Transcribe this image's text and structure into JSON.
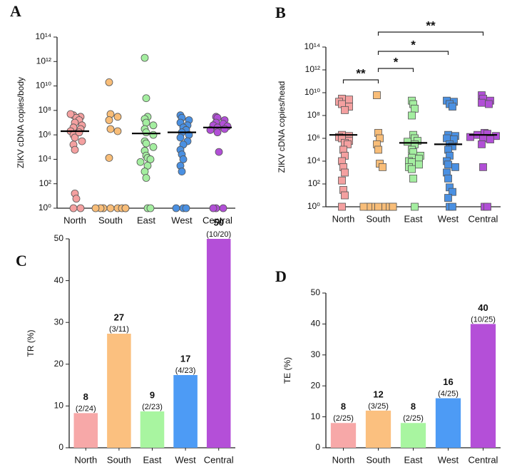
{
  "chart_data": [
    {
      "type": "scatter",
      "panel_label": "A",
      "y_label": "ZIKV cDNA copies/body",
      "log_scale": true,
      "categories": [
        "North",
        "South",
        "East",
        "West",
        "Central"
      ],
      "ylim": [
        1,
        100000000000000.0
      ],
      "yticks": [
        {
          "value": 1,
          "label": "10⁰"
        },
        {
          "value": 100,
          "label": "10²"
        },
        {
          "value": 10000,
          "label": "10⁴"
        },
        {
          "value": 1000000.0,
          "label": "10⁶"
        },
        {
          "value": 100000000.0,
          "label": "10⁸"
        },
        {
          "value": 10000000000.0,
          "label": "10¹⁰"
        },
        {
          "value": 1000000000000.0,
          "label": "10¹²"
        },
        {
          "value": 100000000000000.0,
          "label": "10¹⁴"
        }
      ],
      "marker": "circle",
      "series": [
        {
          "color": "#f4a0a0",
          "values": [
            40000000.0,
            30000000.0,
            25000000.0,
            16000000.0,
            10000000.0,
            6000000.0,
            4000000.0,
            3000000.0,
            2000000.0,
            1000000.0,
            600000.0,
            300000.0,
            160000.0,
            60000.0,
            50000000.0,
            1600000.0,
            16,
            6,
            1,
            1
          ]
        },
        {
          "color": "#f8bd78",
          "values": [
            20000000000.0,
            50000000.0,
            30000000.0,
            16000000.0,
            3000000.0,
            2000000.0,
            13000.0,
            1,
            1,
            1,
            1,
            1,
            1,
            1,
            1
          ]
        },
        {
          "color": "#a4eea0",
          "values": [
            2000000000000.0,
            1000000000.0,
            30000000.0,
            20000000.0,
            10000000.0,
            6000000.0,
            3000000.0,
            1600000.0,
            1000000.0,
            300000.0,
            200000.0,
            100000.0,
            50000.0,
            20000.0,
            13000.0,
            10000.0,
            6000.0,
            3000.0,
            1000.0,
            300,
            1,
            1
          ]
        },
        {
          "color": "#4a90e2",
          "values": [
            40000000.0,
            25000000.0,
            16000000.0,
            10000000.0,
            6000000.0,
            4000000.0,
            2500000.0,
            1600000.0,
            1000000.0,
            600000.0,
            300000.0,
            160000.0,
            60000.0,
            25000.0,
            10000.0,
            3000.0,
            1000.0,
            1,
            1,
            1
          ]
        },
        {
          "color": "#b14fd6",
          "values": [
            30000000.0,
            25000000.0,
            16000000.0,
            10000000.0,
            8000000.0,
            6000000.0,
            5000000.0,
            4000000.0,
            3000000.0,
            2500000.0,
            1600000.0,
            40000.0,
            1,
            1,
            1
          ]
        }
      ],
      "medians": [
        2000000.0,
        null,
        1300000.0,
        1600000.0,
        4000000.0
      ]
    },
    {
      "type": "scatter",
      "panel_label": "B",
      "y_label": "ZIKV cDNA copies/head",
      "log_scale": true,
      "categories": [
        "North",
        "South",
        "East",
        "West",
        "Central"
      ],
      "ylim": [
        1,
        100000000000000.0
      ],
      "yticks": [
        {
          "value": 1,
          "label": "10⁰"
        },
        {
          "value": 100,
          "label": "10²"
        },
        {
          "value": 10000,
          "label": "10⁴"
        },
        {
          "value": 1000000.0,
          "label": "10⁶"
        },
        {
          "value": 100000000.0,
          "label": "10⁸"
        },
        {
          "value": 10000000000.0,
          "label": "10¹⁰"
        },
        {
          "value": 1000000000000.0,
          "label": "10¹²"
        },
        {
          "value": 100000000000000.0,
          "label": "10¹⁴"
        }
      ],
      "marker": "square",
      "series": [
        {
          "color": "#f4a0a0",
          "values": [
            3000000000.0,
            2500000000.0,
            1600000000.0,
            1000000000.0,
            600000000.0,
            300000000.0,
            2000000.0,
            1600000.0,
            1300000.0,
            1000000.0,
            600000.0,
            400000.0,
            300000.0,
            100000.0,
            30000.0,
            10000.0,
            3000.0,
            1000.0,
            200,
            30,
            10,
            1
          ]
        },
        {
          "color": "#f8bd78",
          "values": [
            6000000000.0,
            3000000.0,
            1000000.0,
            300000.0,
            100000.0,
            6000.0,
            3000.0,
            1,
            1,
            1,
            1,
            1,
            1,
            1,
            1
          ]
        },
        {
          "color": "#a4eea0",
          "values": [
            2000000000.0,
            1000000000.0,
            400000000.0,
            100000000.0,
            2000000.0,
            1000000.0,
            600000.0,
            500000.0,
            300000.0,
            100000.0,
            60000.0,
            30000.0,
            20000.0,
            16000.0,
            10000.0,
            8000.0,
            5000.0,
            3000.0,
            2000.0,
            300,
            1
          ]
        },
        {
          "color": "#4a90e2",
          "values": [
            2000000000.0,
            1600000000.0,
            1000000000.0,
            600000000.0,
            2000000.0,
            1600000.0,
            1000000.0,
            800000.0,
            300000.0,
            200000.0,
            100000.0,
            30000.0,
            10000.0,
            5000.0,
            3000.0,
            1000.0,
            300,
            50,
            20,
            6,
            1,
            1
          ]
        },
        {
          "color": "#b14fd6",
          "values": [
            6000000000.0,
            3000000000.0,
            2000000000.0,
            1300000000.0,
            1000000000.0,
            3000000.0,
            2500000.0,
            2000000.0,
            1600000.0,
            1300000.0,
            1000000.0,
            800000.0,
            300000.0,
            3000.0,
            1,
            1
          ]
        }
      ],
      "medians": [
        2000000.0,
        null,
        400000.0,
        300000.0,
        2000000.0
      ],
      "significance": [
        {
          "from": "North",
          "to": "South",
          "label": "**"
        },
        {
          "from": "South",
          "to": "East",
          "label": "*"
        },
        {
          "from": "South",
          "to": "West",
          "label": "*"
        },
        {
          "from": "South",
          "to": "Central",
          "label": "**"
        }
      ]
    },
    {
      "type": "bar",
      "panel_label": "C",
      "y_label": "TR  (%)",
      "categories": [
        "North",
        "South",
        "East",
        "West",
        "Central"
      ],
      "values": [
        8.3,
        27.3,
        8.7,
        17.4,
        50
      ],
      "value_labels": [
        "8",
        "27",
        "9",
        "17",
        "50"
      ],
      "fraction_labels": [
        "(2/24)",
        "(3/11)",
        "(2/23)",
        "(4/23)",
        "(10/20)"
      ],
      "colors": [
        "#f7a8a8",
        "#fbc07f",
        "#a8f5a0",
        "#4d9bf5",
        "#b44fd8"
      ],
      "ylim": [
        0,
        50
      ],
      "yticks": [
        0,
        10,
        20,
        30,
        40,
        50
      ]
    },
    {
      "type": "bar",
      "panel_label": "D",
      "y_label": "TE (%)",
      "categories": [
        "North",
        "South",
        "East",
        "West",
        "Central"
      ],
      "values": [
        8,
        12,
        8,
        16,
        40
      ],
      "value_labels": [
        "8",
        "12",
        "8",
        "16",
        "40"
      ],
      "fraction_labels": [
        "(2/25)",
        "(3/25)",
        "(2/25)",
        "(4/25)",
        "(10/25)"
      ],
      "colors": [
        "#f7a8a8",
        "#fbc07f",
        "#a8f5a0",
        "#4d9bf5",
        "#b44fd8"
      ],
      "ylim": [
        0,
        50
      ],
      "yticks": [
        0,
        10,
        20,
        30,
        40,
        50
      ]
    }
  ]
}
